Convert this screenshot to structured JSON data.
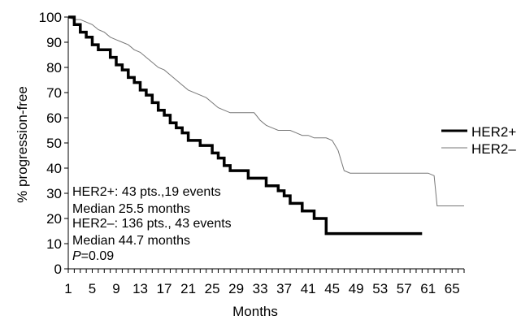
{
  "chart_data": {
    "type": "line",
    "title": "",
    "xlabel": "Months",
    "ylabel": "% progression-free",
    "xlim": [
      1,
      67
    ],
    "ylim": [
      0,
      100
    ],
    "x_ticks": [
      "1",
      "5",
      "9",
      "13",
      "17",
      "21",
      "25",
      "29",
      "33",
      "37",
      "41",
      "45",
      "49",
      "53",
      "57",
      "61",
      "65"
    ],
    "y_ticks": [
      "0",
      "10",
      "20",
      "30",
      "40",
      "50",
      "60",
      "70",
      "80",
      "90",
      "100"
    ],
    "grid": false,
    "legend_position": "right",
    "series": [
      {
        "name": "HER2+",
        "color": "#000000",
        "style": "thick",
        "x": [
          1,
          2,
          2,
          3,
          3,
          4,
          4,
          5,
          5,
          6,
          6,
          8,
          8,
          9,
          9,
          10,
          10,
          11,
          11,
          12,
          12,
          13,
          13,
          14,
          14,
          15,
          15,
          16,
          16,
          17,
          17,
          18,
          18,
          19,
          19,
          20,
          20,
          21,
          21,
          23,
          23,
          25,
          25,
          26,
          26,
          27,
          27,
          28,
          28,
          31,
          31,
          34,
          34,
          36,
          36,
          37,
          37,
          38,
          38,
          40,
          40,
          42,
          42,
          44,
          44,
          60
        ],
        "y": [
          100,
          100,
          97,
          97,
          94,
          94,
          92,
          92,
          89,
          89,
          87,
          87,
          84,
          84,
          81,
          81,
          79,
          79,
          76,
          76,
          74,
          74,
          71,
          71,
          69,
          69,
          66,
          66,
          63,
          63,
          61,
          61,
          58,
          58,
          56,
          56,
          54,
          54,
          51,
          51,
          49,
          49,
          46,
          46,
          44,
          44,
          41,
          41,
          39,
          39,
          36,
          36,
          33,
          33,
          31,
          31,
          29,
          29,
          26,
          26,
          23,
          23,
          20,
          20,
          14,
          14
        ]
      },
      {
        "name": "HER2–",
        "color": "#777777",
        "style": "thin",
        "x": [
          1,
          2,
          3,
          4,
          5,
          6,
          7,
          8,
          9,
          10,
          11,
          12,
          13,
          14,
          15,
          16,
          17,
          18,
          19,
          20,
          21,
          23,
          24,
          25,
          26,
          27,
          28,
          29,
          30,
          31,
          32,
          33,
          34,
          35,
          36,
          37,
          38,
          39,
          40,
          41,
          42,
          43,
          44,
          45,
          46,
          47,
          48,
          57,
          60,
          61,
          62,
          62.5,
          63,
          67
        ],
        "y": [
          100,
          99,
          99,
          98,
          97,
          95,
          94,
          92,
          91,
          90,
          89,
          87,
          86,
          84,
          82,
          80,
          79,
          77,
          75,
          73,
          71,
          69,
          68,
          66,
          64,
          63,
          62,
          62,
          62,
          62,
          62,
          59,
          57,
          56,
          55,
          55,
          55,
          54,
          53,
          53,
          52,
          52,
          52,
          51,
          47,
          39,
          38,
          38,
          38,
          38,
          37,
          25,
          25,
          25
        ]
      }
    ],
    "annotations": [
      "HER2+: 43 pts.,19 events",
      "Median 25.5 months",
      "HER2–: 136 pts., 43 events",
      "Median 44.7 months"
    ],
    "p_value": {
      "label": "P",
      "text": "=0.09"
    }
  }
}
